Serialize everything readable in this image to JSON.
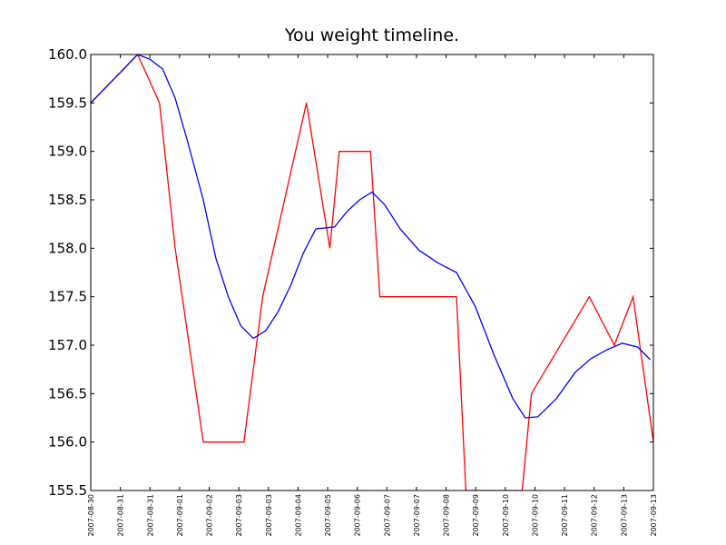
{
  "chart_data": {
    "type": "line",
    "title": "You weight timeline.",
    "xlabel": "",
    "ylabel": "",
    "ylim": [
      155.5,
      160.0
    ],
    "xlim": [
      "2007-08-30",
      "2007-09-13"
    ],
    "grid": false,
    "legend": "none",
    "y_ticks": [
      "155.5",
      "156.0",
      "156.5",
      "157.0",
      "157.5",
      "158.0",
      "158.5",
      "159.0",
      "159.5",
      "160.0"
    ],
    "x_tick_labels": [
      "2007-08-30",
      "2007-08-31",
      "2007-08-31",
      "2007-09-01",
      "2007-09-02",
      "2007-09-03",
      "2007-09-03",
      "2007-09-04",
      "2007-09-05",
      "2007-09-06",
      "2007-09-07",
      "2007-09-07",
      "2007-09-08",
      "2007-09-09",
      "2007-09-10",
      "2007-09-10",
      "2007-09-11",
      "2007-09-12",
      "2007-09-13",
      "2007-09-13"
    ],
    "series": [
      {
        "color": "#ff0000",
        "points": [
          [
            "2007-08-30 00:00",
            159.5
          ],
          [
            "2007-08-31 06:00",
            160.0
          ],
          [
            "2007-08-31 20:00",
            159.5
          ],
          [
            "2007-09-01 06:00",
            158.0
          ],
          [
            "2007-09-02 00:00",
            156.0
          ],
          [
            "2007-09-03 02:00",
            156.0
          ],
          [
            "2007-09-03 14:00",
            157.5
          ],
          [
            "2007-09-04 18:00",
            159.5
          ],
          [
            "2007-09-05 09:00",
            158.0
          ],
          [
            "2007-09-05 15:00",
            159.0
          ],
          [
            "2007-09-06 11:00",
            159.0
          ],
          [
            "2007-09-06 17:00",
            157.5
          ],
          [
            "2007-09-08 18:00",
            157.5
          ],
          [
            "2007-09-09 00:00",
            155.5
          ],
          [
            "2007-09-10 12:00",
            155.5
          ],
          [
            "2007-09-10 18:00",
            156.5
          ],
          [
            "2007-09-12 07:00",
            157.5
          ],
          [
            "2007-09-12 23:00",
            157.0
          ],
          [
            "2007-09-13 11:00",
            157.5
          ],
          [
            "2007-09-14 00:00",
            156.0
          ]
        ]
      },
      {
        "color": "#0000ff",
        "points": [
          [
            "2007-08-30 00:00",
            159.5
          ],
          [
            "2007-08-31 06:00",
            160.0
          ],
          [
            "2007-08-31 14:00",
            159.95
          ],
          [
            "2007-08-31 22:00",
            159.85
          ],
          [
            "2007-09-01 06:00",
            159.55
          ],
          [
            "2007-09-01 14:00",
            159.1
          ],
          [
            "2007-09-02 00:00",
            158.5
          ],
          [
            "2007-09-02 08:00",
            157.9
          ],
          [
            "2007-09-02 16:00",
            157.5
          ],
          [
            "2007-09-03 00:00",
            157.2
          ],
          [
            "2007-09-03 08:00",
            157.07
          ],
          [
            "2007-09-03 16:00",
            157.15
          ],
          [
            "2007-09-04 00:00",
            157.35
          ],
          [
            "2007-09-04 08:00",
            157.62
          ],
          [
            "2007-09-04 16:00",
            157.95
          ],
          [
            "2007-09-05 00:00",
            158.2
          ],
          [
            "2007-09-05 12:00",
            158.22
          ],
          [
            "2007-09-05 20:00",
            158.38
          ],
          [
            "2007-09-06 04:00",
            158.5
          ],
          [
            "2007-09-06 12:00",
            158.58
          ],
          [
            "2007-09-06 20:00",
            158.45
          ],
          [
            "2007-09-07 06:00",
            158.2
          ],
          [
            "2007-09-07 18:00",
            157.98
          ],
          [
            "2007-09-08 06:00",
            157.85
          ],
          [
            "2007-09-08 18:00",
            157.75
          ],
          [
            "2007-09-09 06:00",
            157.4
          ],
          [
            "2007-09-09 18:00",
            156.9
          ],
          [
            "2007-09-10 06:00",
            156.45
          ],
          [
            "2007-09-10 14:00",
            156.25
          ],
          [
            "2007-09-10 22:00",
            156.26
          ],
          [
            "2007-09-11 10:00",
            156.45
          ],
          [
            "2007-09-11 22:00",
            156.72
          ],
          [
            "2007-09-12 08:00",
            156.86
          ],
          [
            "2007-09-12 18:00",
            156.95
          ],
          [
            "2007-09-13 04:00",
            157.02
          ],
          [
            "2007-09-13 14:00",
            156.98
          ],
          [
            "2007-09-13 22:00",
            156.85
          ]
        ]
      }
    ]
  }
}
